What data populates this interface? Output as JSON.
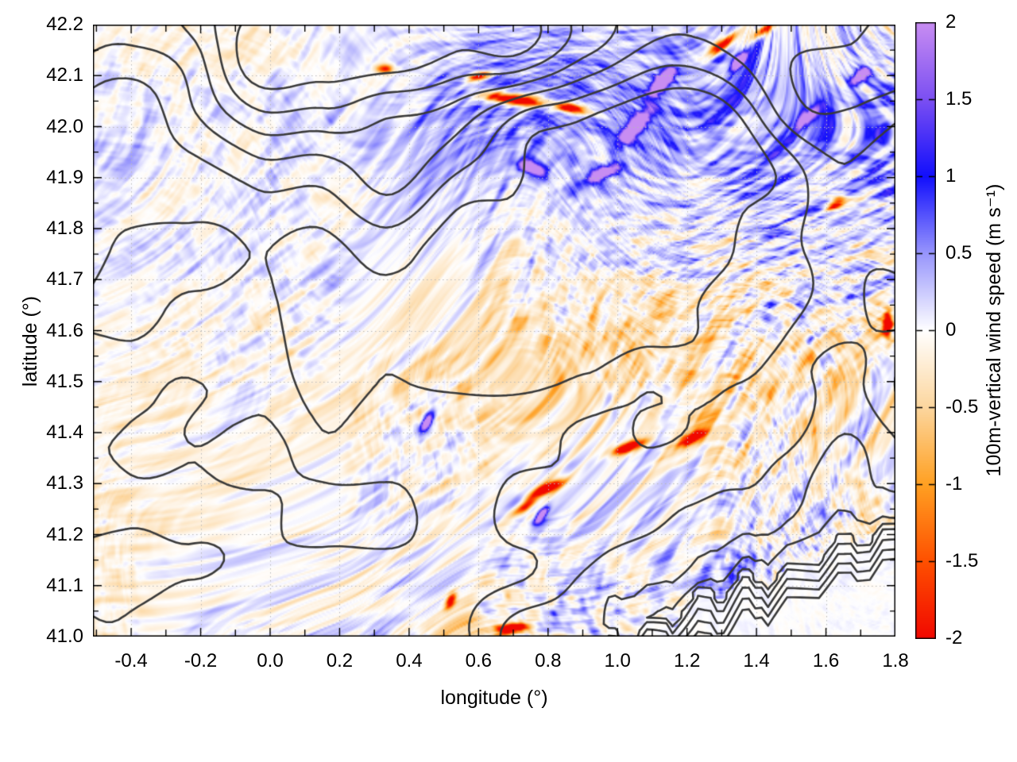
{
  "figure": {
    "xlabel": "longitude (°)",
    "ylabel": "latitude (°)"
  },
  "chart_data": {
    "type": "heatmap",
    "title": "",
    "xlabel": "longitude (°)",
    "ylabel": "latitude (°)",
    "xlim": [
      -0.51,
      1.8
    ],
    "ylim": [
      41.0,
      42.2
    ],
    "x_major_tick_step": 0.2,
    "x_minor_tick_step": 0.1,
    "y_major_tick_step": 0.1,
    "y_minor_tick_step": 0.05,
    "x_tick_values": [
      -0.4,
      -0.2,
      0.0,
      0.2,
      0.4,
      0.6,
      0.8,
      1.0,
      1.2,
      1.4,
      1.6,
      1.8
    ],
    "x_tick_labels": [
      "-0.4",
      "-0.2",
      "0.0",
      "0.2",
      "0.4",
      "0.6",
      "0.8",
      "1.0",
      "1.2",
      "1.4",
      "1.6",
      "1.8"
    ],
    "y_tick_values": [
      41.0,
      41.1,
      41.2,
      41.3,
      41.4,
      41.5,
      41.6,
      41.7,
      41.8,
      41.9,
      42.0,
      42.1,
      42.2
    ],
    "y_tick_labels": [
      "41.0",
      "41.1",
      "41.2",
      "41.3",
      "41.4",
      "41.5",
      "41.6",
      "41.7",
      "41.8",
      "41.9",
      "42.0",
      "42.1",
      "42.2"
    ],
    "grid": {
      "show": true,
      "style": "dotted",
      "color": "#b9b9b9"
    },
    "contours": {
      "overlay": "terrain-contour-lines",
      "color": "#3a3a3a",
      "line_width": 2.6,
      "levels": [
        0.48,
        0.6,
        0.72,
        0.84,
        0.96,
        1.08
      ]
    },
    "colorbar": {
      "label": "100m-vertical wind speed (m s⁻¹)",
      "range": [
        -2,
        2
      ],
      "tick_values": [
        2,
        1.5,
        1,
        0.5,
        0,
        -0.5,
        -1,
        -1.5,
        -2
      ],
      "tick_labels": [
        "2",
        "1.5",
        "1",
        "0.5",
        "0",
        "-0.5",
        "-1",
        "-1.5",
        "-2"
      ],
      "palette": [
        {
          "v": -2.0,
          "c": "#f10800"
        },
        {
          "v": -1.5,
          "c": "#fe5000"
        },
        {
          "v": -1.0,
          "c": "#ffa022"
        },
        {
          "v": -0.5,
          "c": "#fcd69e"
        },
        {
          "v": 0.0,
          "c": "#ffffff"
        },
        {
          "v": 0.5,
          "c": "#9896fc"
        },
        {
          "v": 1.0,
          "c": "#120ffc"
        },
        {
          "v": 1.5,
          "c": "#7b4ff2"
        },
        {
          "v": 2.0,
          "c": "#c88df2"
        }
      ]
    },
    "render": {
      "seed": 1337,
      "coast": {
        "x0": 0.97,
        "lat0": 40.995,
        "x1": 1.81,
        "lat1": 41.225
      },
      "regions": [
        {
          "u": 0.62,
          "v": 0.15,
          "su": 0.25,
          "sv": 0.11,
          "amp": 0.25
        },
        {
          "u": 0.95,
          "v": 0.3,
          "su": 0.15,
          "sv": 0.18,
          "amp": 0.18
        },
        {
          "u": 0.55,
          "v": 0.55,
          "su": 0.28,
          "sv": 0.13,
          "amp": -0.26
        },
        {
          "u": 0.3,
          "v": 0.7,
          "su": 0.22,
          "sv": 0.15,
          "amp": -0.12
        },
        {
          "u": 0.1,
          "v": 0.45,
          "su": 0.18,
          "sv": 0.3,
          "amp": 0.06
        },
        {
          "u": 0.85,
          "v": 0.62,
          "su": 0.1,
          "sv": 0.1,
          "amp": -0.15
        }
      ],
      "hotspots": [
        {
          "lon": 0.7,
          "lat": 42.055,
          "amp": -2.3,
          "sx": 0.085,
          "sy": 0.011,
          "rot": -5
        },
        {
          "lon": 0.87,
          "lat": 42.035,
          "amp": -1.9,
          "sx": 0.045,
          "sy": 0.01,
          "rot": -8
        },
        {
          "lon": 0.6,
          "lat": 42.1,
          "amp": -1.5,
          "sx": 0.035,
          "sy": 0.009,
          "rot": 8
        },
        {
          "lon": 1.3,
          "lat": 42.16,
          "amp": -2.1,
          "sx": 0.05,
          "sy": 0.011,
          "rot": 28
        },
        {
          "lon": 1.42,
          "lat": 42.19,
          "amp": -1.7,
          "sx": 0.035,
          "sy": 0.01,
          "rot": 25
        },
        {
          "lon": 0.33,
          "lat": 42.115,
          "amp": -1.3,
          "sx": 0.025,
          "sy": 0.009,
          "rot": 0
        },
        {
          "lon": 1.63,
          "lat": 41.85,
          "amp": -1.6,
          "sx": 0.03,
          "sy": 0.011,
          "rot": 20
        },
        {
          "lon": 1.78,
          "lat": 41.61,
          "amp": -1.8,
          "sx": 0.012,
          "sy": 0.03,
          "rot": 0
        },
        {
          "lon": 0.8,
          "lat": 41.29,
          "amp": -2.1,
          "sx": 0.045,
          "sy": 0.01,
          "rot": 18
        },
        {
          "lon": 0.74,
          "lat": 41.255,
          "amp": -1.5,
          "sx": 0.03,
          "sy": 0.009,
          "rot": 25
        },
        {
          "lon": 1.03,
          "lat": 41.37,
          "amp": -1.8,
          "sx": 0.05,
          "sy": 0.01,
          "rot": 12
        },
        {
          "lon": 1.22,
          "lat": 41.39,
          "amp": -1.6,
          "sx": 0.035,
          "sy": 0.01,
          "rot": 22
        },
        {
          "lon": 0.52,
          "lat": 41.07,
          "amp": -1.5,
          "sx": 0.02,
          "sy": 0.011,
          "rot": 45
        },
        {
          "lon": 0.7,
          "lat": 41.015,
          "amp": -1.9,
          "sx": 0.045,
          "sy": 0.01,
          "rot": 4
        },
        {
          "lon": 1.05,
          "lat": 42.0,
          "amp": 2.0,
          "sx": 0.05,
          "sy": 0.016,
          "rot": 35
        },
        {
          "lon": 1.13,
          "lat": 42.09,
          "amp": 2.3,
          "sx": 0.038,
          "sy": 0.014,
          "rot": 35
        },
        {
          "lon": 1.35,
          "lat": 42.13,
          "amp": 1.9,
          "sx": 0.028,
          "sy": 0.012,
          "rot": 30
        },
        {
          "lon": 0.96,
          "lat": 41.91,
          "amp": 1.6,
          "sx": 0.05,
          "sy": 0.012,
          "rot": 15
        },
        {
          "lon": 0.75,
          "lat": 41.92,
          "amp": 1.5,
          "sx": 0.04,
          "sy": 0.012,
          "rot": -10
        },
        {
          "lon": 0.45,
          "lat": 41.42,
          "amp": 1.8,
          "sx": 0.025,
          "sy": 0.012,
          "rot": 50
        },
        {
          "lon": 0.78,
          "lat": 41.235,
          "amp": 1.7,
          "sx": 0.025,
          "sy": 0.01,
          "rot": 40
        },
        {
          "lon": 1.55,
          "lat": 42.02,
          "amp": 1.5,
          "sx": 0.035,
          "sy": 0.013,
          "rot": 30
        },
        {
          "lon": 1.7,
          "lat": 42.1,
          "amp": 1.6,
          "sx": 0.03,
          "sy": 0.012,
          "rot": 25
        }
      ]
    }
  }
}
